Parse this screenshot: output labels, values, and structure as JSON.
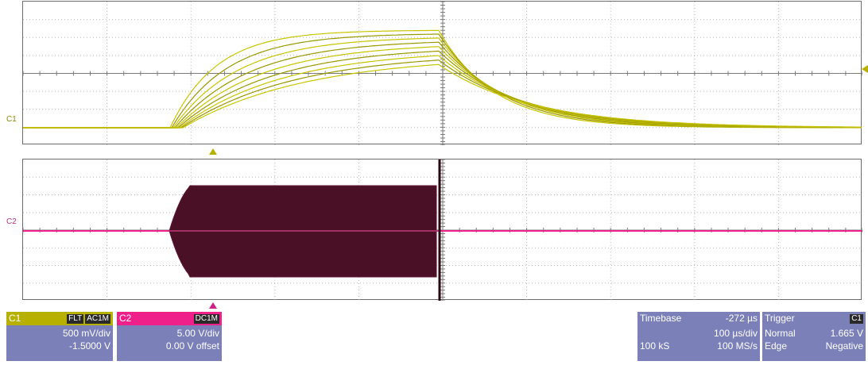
{
  "channels": {
    "c1": {
      "trace_label": "C1",
      "color": "#c8c400",
      "header_name": "C1",
      "badges": [
        "FLT",
        "AC1M"
      ],
      "scale": "500 mV/div",
      "offset": "-1.5000 V"
    },
    "c2": {
      "trace_label": "C2",
      "color": "#f0208a",
      "header_name": "C2",
      "badges": [
        "DC1M"
      ],
      "scale": "5.00 V/div",
      "offset": "0.00 V offset"
    }
  },
  "timebase": {
    "label": "Timebase",
    "delay": "-272 µs",
    "per_div": "100 µs/div",
    "samples": "100 kS",
    "rate": "100 MS/s"
  },
  "trigger": {
    "label": "Trigger",
    "source": "C1",
    "mode": "Normal",
    "level": "1.665 V",
    "type": "Edge",
    "slope": "Negative"
  }
}
